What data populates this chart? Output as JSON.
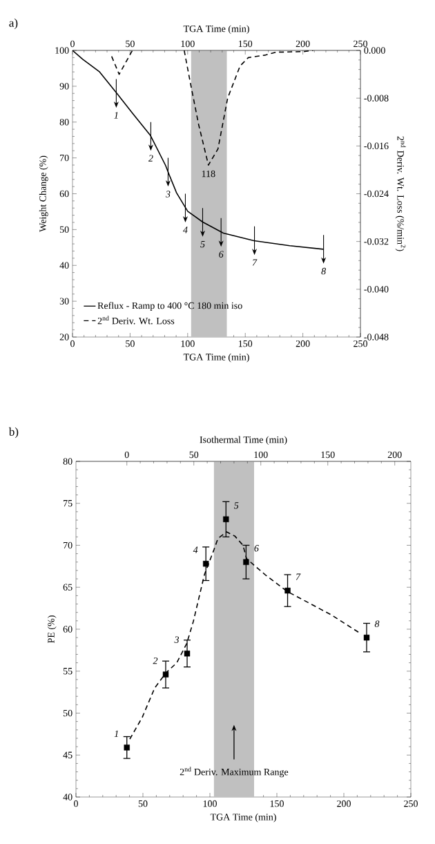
{
  "chart_data": [
    {
      "type": "line",
      "title": "a)",
      "xlabel": "TGA Time (min)",
      "x2label": "TGA Time (min)",
      "ylabel": "Weight Change (%)",
      "y2label": "2$^{nd}$ Deriv. Wt. Loss (%/min$^{2}$)",
      "xlim": [
        0,
        250
      ],
      "xticks": [
        0,
        50,
        100,
        150,
        200,
        250
      ],
      "x2lim": [
        0,
        250
      ],
      "x2ticks": [
        0,
        50,
        100,
        150,
        200,
        250
      ],
      "ylim": [
        20,
        100
      ],
      "yticks": [
        20,
        30,
        40,
        50,
        60,
        70,
        80,
        90,
        100
      ],
      "y2lim": [
        -0.048,
        0
      ],
      "y2ticks": [
        {
          "value": -0.048,
          "label": "-0.048"
        },
        {
          "value": -0.04,
          "label": "-0.040"
        },
        {
          "value": -0.032,
          "label": "-0.032"
        },
        {
          "value": -0.024,
          "label": "-0.024"
        },
        {
          "value": -0.016,
          "label": "-0.016"
        },
        {
          "value": -0.008,
          "label": "-0.008"
        },
        {
          "value": 0,
          "label": "0.000"
        }
      ],
      "legend": "bottom left",
      "bands": [
        {
          "axis": "x",
          "from": 103,
          "to": 134,
          "color": "#c0c0c0"
        }
      ],
      "annotations": [
        {
          "text": "1",
          "x": 38,
          "y": 88
        },
        {
          "text": "2",
          "x": 68,
          "y": 76
        },
        {
          "text": "3",
          "x": 83,
          "y": 66
        },
        {
          "text": "4",
          "x": 98,
          "y": 56
        },
        {
          "text": "5",
          "x": 113,
          "y": 52
        },
        {
          "text": "6",
          "x": 129,
          "y": 49.2
        },
        {
          "text": "7",
          "x": 158,
          "y": 46.9
        },
        {
          "text": "8",
          "x": 218,
          "y": 44.5
        },
        "118"
      ],
      "series": [
        {
          "name": "Reflux - Ramp to 400 °C 180 min iso",
          "type": "line",
          "line_style": "solid",
          "color": "#000000",
          "x": [
            0,
            8.9,
            23.2,
            38.8,
            52,
            67.6,
            80.8,
            83.7,
            90.4,
            100,
            113.1,
            131,
            157.5,
            188.6,
            217.9
          ],
          "values": [
            100,
            97.5,
            94.1,
            87.9,
            82.5,
            76.3,
            67.9,
            65.5,
            60.2,
            55.1,
            52.1,
            49.0,
            46.9,
            45.5,
            44.5
          ]
        },
        {
          "name": "2$^{nd}$ Deriv. Wt. Loss",
          "type": "line",
          "line_style": "dashed",
          "axis": "y2",
          "color": "#000000",
          "x": [
            34,
            40.5,
            52,
            75,
            97,
            102.3,
            109.5,
            118,
            126.3,
            134.7,
            145.5,
            152.7,
            167,
            176.7,
            200.6,
            209
          ],
          "values": [
            -0.001,
            -0.004,
            0,
            null,
            0,
            -0.0054,
            -0.0124,
            -0.0192,
            -0.0165,
            -0.008,
            -0.0026,
            -0.0012,
            -0.0008,
            -0.0003,
            -0.0002,
            0
          ]
        }
      ]
    },
    {
      "type": "scatter",
      "title": "b)",
      "xlabel": "TGA Time (min)",
      "x2label": "Isothermal Time (min)",
      "ylabel": "PE (%)",
      "xlim": [
        0,
        250
      ],
      "xticks": [
        0,
        50,
        100,
        150,
        200,
        250
      ],
      "x2lim": [
        -38,
        212
      ],
      "x2ticks": [
        0,
        50,
        100,
        150,
        200
      ],
      "ylim": [
        40,
        80
      ],
      "yticks": [
        40,
        45,
        50,
        55,
        60,
        65,
        70,
        75,
        80
      ],
      "bands": [
        {
          "axis": "x",
          "from": 103,
          "to": 133,
          "color": "#c0c0c0",
          "label": "2$^{nd}$ Deriv. Maximum Range"
        }
      ],
      "annotations": [
        {
          "text": "1",
          "x": 38,
          "y": 45.9
        },
        {
          "text": "2",
          "x": 67,
          "y": 54.6
        },
        {
          "text": "3",
          "x": 83,
          "y": 57.1
        },
        {
          "text": "4",
          "x": 97,
          "y": 67.8
        },
        {
          "text": "5",
          "x": 112,
          "y": 73.1
        },
        {
          "text": "6",
          "x": 127,
          "y": 68.0
        },
        {
          "text": "7",
          "x": 158,
          "y": 64.6
        },
        {
          "text": "8",
          "x": 217,
          "y": 59.0
        }
      ],
      "series": [
        {
          "type": "scatter",
          "marker": "square",
          "color": "#000000",
          "x": [
            38,
            67,
            83,
            97,
            112,
            127,
            158,
            217
          ],
          "values": [
            45.9,
            54.6,
            57.1,
            67.8,
            73.1,
            68.0,
            64.6,
            59.0
          ],
          "errors": [
            1.3,
            1.6,
            1.6,
            2,
            2.1,
            2,
            1.9,
            1.7
          ]
        },
        {
          "type": "line",
          "line_style": "dashed",
          "color": "#000000",
          "x": [
            40.2,
            49.5,
            58.8,
            67.2,
            75.3,
            82.7,
            87.6,
            95.9,
            103.1,
            106,
            112.4,
            118.6,
            124.7,
            127.4,
            141.2,
            157.7,
            190.7,
            211.3
          ],
          "values": [
            46.9,
            49.5,
            53.0,
            54.8,
            56,
            58.3,
            60.9,
            66.5,
            69.5,
            70.8,
            71.6,
            71.1,
            70.0,
            68.4,
            66.5,
            64.5,
            61.7,
            59.6
          ]
        }
      ]
    }
  ]
}
